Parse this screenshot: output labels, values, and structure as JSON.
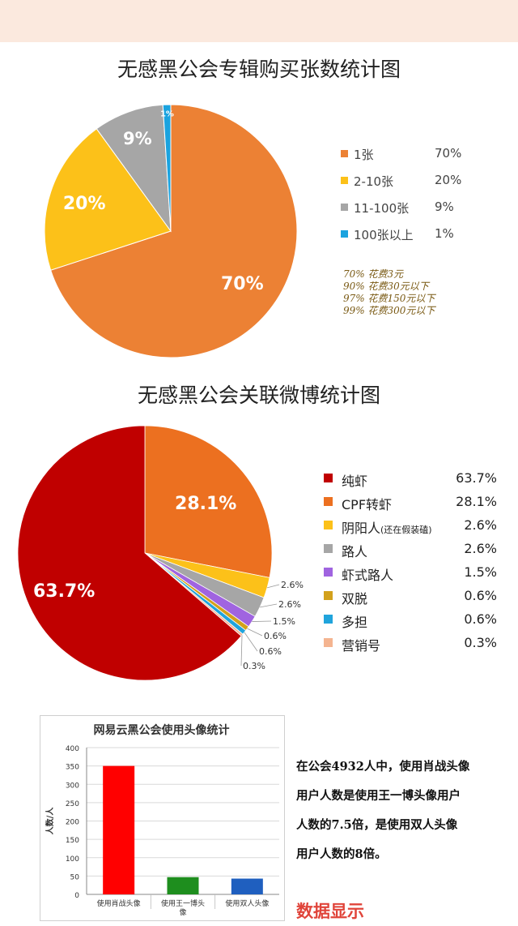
{
  "chart_data": [
    {
      "type": "pie",
      "title": "无感黑公会专辑购买张数统计图",
      "categories": [
        "1张",
        "2-10张",
        "11-100张",
        "100张以上"
      ],
      "values": [
        70,
        20,
        9,
        1
      ],
      "data_labels": [
        "70%",
        "20%",
        "9%",
        "1%"
      ],
      "legend_values": [
        "70%",
        "20%",
        "9%",
        "1%"
      ],
      "colors": [
        "#ec8134",
        "#fcc119",
        "#a6a6a6",
        "#1ba3df"
      ],
      "legend": "right",
      "notes": [
        "70%  花费3元",
        "90%  花费30元以下",
        "97%  花费150元以下",
        "99%  花费300元以下"
      ]
    },
    {
      "type": "pie",
      "title": "无感黑公会关联微博统计图",
      "categories": [
        "纯虾",
        "CPF转虾",
        "阴阳人",
        "路人",
        "虾式路人",
        "双脱",
        "多担",
        "营销号"
      ],
      "category_notes": [
        "",
        "",
        "(还在假装磕)",
        "",
        "",
        "",
        "",
        ""
      ],
      "values": [
        63.7,
        28.1,
        2.6,
        2.6,
        1.5,
        0.6,
        0.6,
        0.3
      ],
      "legend_values": [
        "63.7%",
        "28.1%",
        "2.6%",
        "2.6%",
        "1.5%",
        "0.6%",
        "0.6%",
        "0.3%"
      ],
      "data_labels": [
        "63.7%",
        "28.1%",
        "2.6%",
        "2.6%",
        "1.5%",
        "0.6%",
        "0.6%",
        "0.3%"
      ],
      "colors": [
        "#c00000",
        "#ec7020",
        "#fcc119",
        "#a6a6a6",
        "#a064e0",
        "#d3a11c",
        "#20a4dc",
        "#f4b490"
      ],
      "legend": "right"
    },
    {
      "type": "bar",
      "title": "网易云黑公会使用头像统计",
      "categories": [
        "使用肖战头像",
        "使用王一博头像",
        "使用双人头像"
      ],
      "values": [
        350,
        47,
        43
      ],
      "colors": [
        "#ff0000",
        "#1e8e1e",
        "#1f5fbf"
      ],
      "ylabel": "人数/人",
      "ylim": [
        0,
        400
      ],
      "yticks": [
        "0",
        "50",
        "100",
        "150",
        "200",
        "250",
        "300",
        "350",
        "400"
      ],
      "grid": true
    }
  ],
  "description": [
    "在公会4932人中，使用肖战头像",
    "用户人数是使用王一博头像用户",
    "人数的7.5倍，是使用双人头像",
    "用户人数的8倍。"
  ],
  "footer": "数据显示"
}
